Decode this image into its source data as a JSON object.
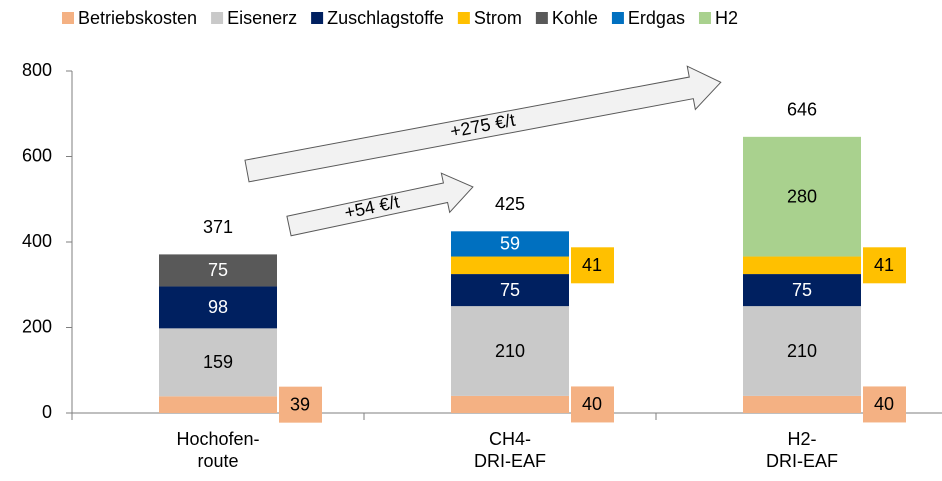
{
  "chart_data": {
    "type": "stacked_bar",
    "categories": [
      "Hochofen-\nroute",
      "CH4-\nDRI-EAF",
      "H2-\nDRI-EAF"
    ],
    "series": [
      {
        "name": "Betriebskosten",
        "color": "#f4b183",
        "values": [
          39,
          40,
          40
        ]
      },
      {
        "name": "Eisenerz",
        "color": "#c9c9c9",
        "values": [
          159,
          210,
          210
        ]
      },
      {
        "name": "Zuschlagstoffe",
        "color": "#002060",
        "values": [
          98,
          75,
          75
        ]
      },
      {
        "name": "Strom",
        "color": "#ffc000",
        "values": [
          null,
          41,
          41
        ]
      },
      {
        "name": "Kohle",
        "color": "#595959",
        "values": [
          75,
          null,
          null
        ]
      },
      {
        "name": "Erdgas",
        "color": "#0070c0",
        "values": [
          null,
          59,
          null
        ]
      },
      {
        "name": "H2",
        "color": "#a9d18e",
        "values": [
          null,
          null,
          280
        ]
      }
    ],
    "totals": [
      371,
      425,
      646
    ],
    "annotations": [
      "+54 €/t",
      "+275 €/t"
    ],
    "ylim": [
      0,
      800
    ],
    "yticks": [
      0,
      200,
      400,
      600,
      800
    ],
    "legend": "top"
  }
}
